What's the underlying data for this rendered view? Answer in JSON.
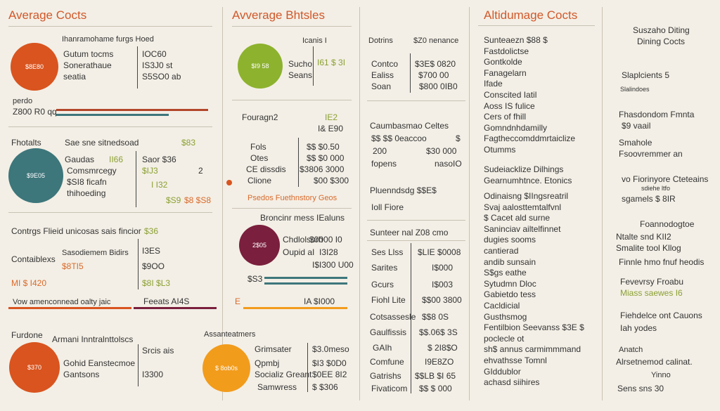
{
  "colors": {
    "orange": "#d9541f",
    "green": "#8db22e",
    "teal": "#3d767b",
    "maroon": "#7a1f3d",
    "amber": "#f29c1c",
    "rust": "#b3462a"
  },
  "col1": {
    "title": "Average Cocts",
    "s1": {
      "header": "Ihanramohame furgs  Hoed",
      "circle": "$8E80",
      "rows": [
        [
          "Gutum tocms",
          "IOC60"
        ],
        [
          "Sonerathaue",
          "IS3J0 st"
        ],
        [
          "seatia",
          "S5SO0 ab"
        ]
      ],
      "left1": "perdo",
      "left2": "Z800 R0 qq"
    },
    "s2": {
      "header": "Fhotalts",
      "header2": "Sae sne sitnedsoad",
      "val": "$83",
      "circle": "$9E05",
      "rows": [
        [
          "Gaudas",
          "II66",
          "Saor $36"
        ],
        [
          "Comsmrcegy",
          "$IJ3",
          "2"
        ],
        [
          "$SI8 ficafn",
          "I I32",
          ""
        ],
        [
          "thihoeding",
          "$S9",
          "$8 $S8"
        ]
      ]
    },
    "s3": {
      "header": "Contrgs Flieid unicosas sais fincior",
      "val": "$36",
      "rows": [
        [
          "Contaiblexs",
          "Sasodiemem Bidirs",
          "I3ES"
        ],
        [
          "",
          "$8TI5",
          "$9OO"
        ],
        [
          "MI $ I420",
          "",
          "$8I $L3"
        ]
      ],
      "footer": "Vow amenconnead oalty jaic",
      "footer2": "Feeats AI4S"
    },
    "s4": {
      "header": "Furdone",
      "header2": "Armani Inntralnttolscs",
      "circle": "$370",
      "rows": [
        [
          "Gohid Eanstecmoe",
          "Srcis ais"
        ],
        [
          "Gantsons",
          "I3300"
        ]
      ]
    }
  },
  "col2": {
    "title": "Avverage Bhtsles",
    "s1": {
      "header": "Icanis  I",
      "circle": "$I9 58",
      "rows": [
        [
          "Sucho",
          "I61 $ 3I"
        ],
        [
          "Seans",
          ""
        ]
      ]
    },
    "s2": {
      "header": "Fouragn2",
      "val": "IE2",
      "val2": "I& E90",
      "rows": [
        [
          "Fols",
          "$$ $0.50"
        ],
        [
          "Otes",
          "$$ $0 000"
        ],
        [
          "CE dissdis",
          "$3806 3000"
        ],
        [
          "Clione",
          "$00 $300"
        ]
      ],
      "note": "Psedos Fuethnstory   Geos"
    },
    "s3": {
      "header": "Broncinr mess  IEaluns",
      "circle": "2$05",
      "rows": [
        [
          "Chdlolsorh",
          "$0000 I0"
        ],
        [
          "Oupid aI",
          "I3I28"
        ],
        [
          "",
          "I$I300 U00"
        ]
      ],
      "v1": "$S3",
      "v2": "IA $I000"
    },
    "s4": {
      "header": "Assanteatmers",
      "circle": "$ 8ob0s",
      "rows": [
        [
          "Grimsater",
          "$3.0meso"
        ],
        [
          "Qpmbj",
          "$I3 $0D0"
        ],
        [
          "Socializ Greant",
          "$0EE 8I2"
        ],
        [
          "Samwress",
          "$ $306"
        ]
      ]
    }
  },
  "col3": {
    "s1": {
      "rows": [
        [
          "Dotrins",
          "$Z0 nenance"
        ],
        [
          "Contco",
          "$3E$ 0820"
        ],
        [
          "Ealiss",
          "$700 00"
        ],
        [
          "Soan",
          "$800 0IB0"
        ]
      ]
    },
    "s2": {
      "header": "Caumbasmao  Celtes",
      "rows": [
        [
          "$$ $$ 0eaccoo",
          "$"
        ],
        [
          "200",
          "$30 000"
        ],
        [
          "fopens",
          "nasoIO"
        ]
      ]
    },
    "s3": {
      "header": "Pluenndsdg $$E$",
      "header2": "Ioll Fiore"
    },
    "s4": {
      "header": "Sunteer nal  Z08 cmo",
      "rows": [
        [
          "Ses Llss",
          "$LIE $0008"
        ],
        [
          "Sarites",
          "I$000"
        ],
        [
          "Gcurs",
          "I$003"
        ],
        [
          "Fiohl Lite",
          "$$00 3800"
        ],
        [
          "Cotsassesle",
          "$$8 0S"
        ],
        [
          "Gaulfissis",
          "$$.06$ 3S"
        ],
        [
          "GAIh",
          "$ 2I8$O"
        ],
        [
          "Comfune",
          "I9E8ZO"
        ],
        [
          "Gatrishs",
          "$$LB $I 65"
        ],
        [
          "Fivaticom",
          "$$ $ 000"
        ]
      ]
    }
  },
  "col4": {
    "title": "Altidumage Cocts",
    "list1": [
      "Sunteaezn $88 $",
      "Fastdolictse",
      "Gontkolde",
      "Fanagelarn",
      "Ifade",
      "Conscited Iatil",
      "Aoss IS fulice",
      "Cers of fhill",
      "Gomndnhdamilly",
      "Fagtheccomddmrtaiclize",
      "Otumms"
    ],
    "list2_title": "Sudeiacklize Dilhings",
    "list2_title2": "Gearnumhtnce. Etonics",
    "list2": [
      "Odinaisng $IIngsreatril",
      "Svaj aalosttemtalfvnl",
      "$   Cacet ald surne",
      "Saninciav ailtelfinnet",
      "dugies sooms",
      "cantierad",
      "andib sunsain",
      "S$gs eathe",
      "Sytudmn Dloc",
      "Gabietdo tess",
      "Cacldicial",
      "Gusthsmog",
      "Fentilbion Seevanss  $3E $",
      "poclecle ot",
      "sh$ annus carmimmmand",
      "ehvathsse Tomnl",
      "GIddublor",
      "achasd siihires"
    ]
  },
  "col5": {
    "title1": "Suszaho Diting",
    "title2": "Dining Cocts",
    "a": "Slaplcients 5",
    "a2": "Slalindoes",
    "b": "Fhasdondom Fmnta",
    "b2": "$9   vaail",
    "c": "Smahole",
    "c2": "Fsoovremmer an",
    "d": "vo Fiorinyore Cteteains",
    "d2": "sdiehe ltfo",
    "d3": "sgamels $ 8IR",
    "e": "Foannodogtoe",
    "e2": "Ntalte snd KII2",
    "e3": "Smalite tool Kllog",
    "e4": "Finnle hmo fnuf heodis",
    "f": "Fevevrsy  Froabu",
    "f2": "Miass saewes  I6",
    "g": "Fiehdelce ont Cauons",
    "g2": "Iah yodes",
    "h": "Anatch",
    "h2": "Alrsetnemod calinat.",
    "h3": "Yinno",
    "h4": "Sens sns  30"
  }
}
